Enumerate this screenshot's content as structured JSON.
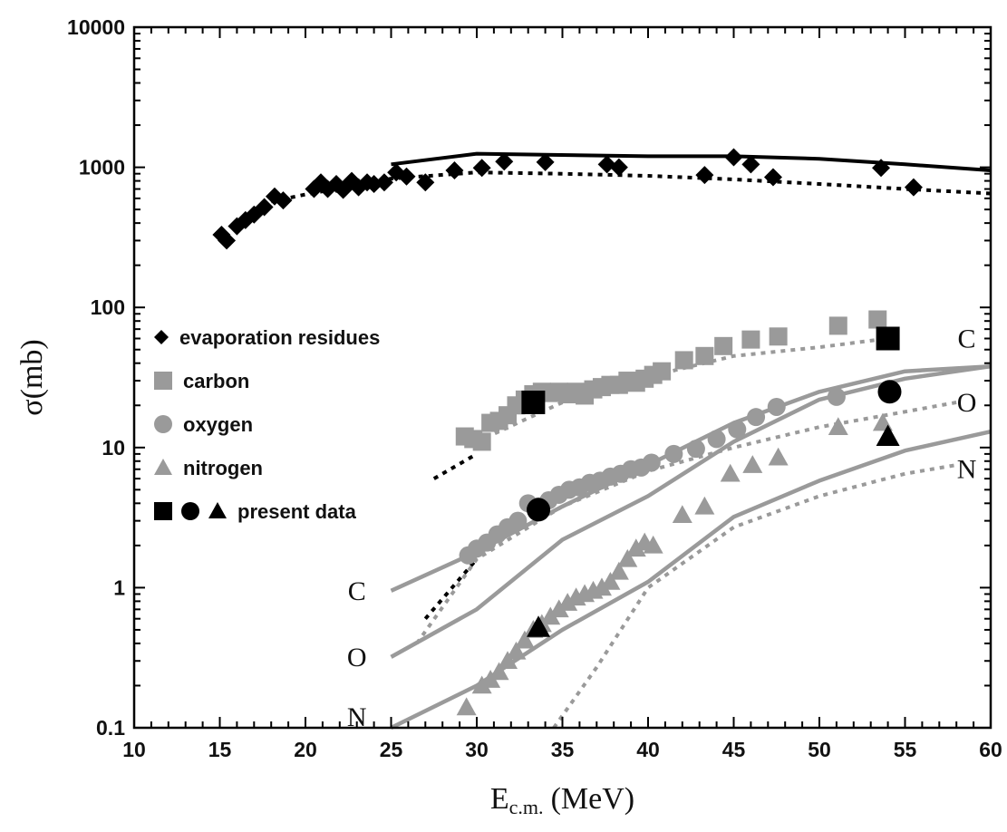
{
  "chart_data": {
    "type": "scatter",
    "title": "",
    "xlabel": "E",
    "xlabel_subscript": "c.m.",
    "xlabel_unit": "(MeV)",
    "ylabel": "σ(mb)",
    "xlim": [
      10,
      60
    ],
    "ylim": [
      0.1,
      10000
    ],
    "yscale": "log",
    "x_ticks": [
      10,
      15,
      20,
      25,
      30,
      35,
      40,
      45,
      50,
      55,
      60
    ],
    "y_ticks": [
      {
        "value": 0.1,
        "label": "0.1"
      },
      {
        "value": 1,
        "label": "1"
      },
      {
        "value": 10,
        "label": "10"
      },
      {
        "value": 100,
        "label": "100"
      },
      {
        "value": 1000,
        "label": "1000"
      },
      {
        "value": 10000,
        "label": "10000"
      }
    ],
    "legend_position": "center-left",
    "grid": false,
    "colors": {
      "black": "#000000",
      "gray": "#9a9a9a"
    },
    "legend": [
      {
        "label": "evaporation residues",
        "markers": [
          "diamond"
        ],
        "color": "#000000"
      },
      {
        "label": "carbon",
        "markers": [
          "square"
        ],
        "color": "#9a9a9a"
      },
      {
        "label": "oxygen",
        "markers": [
          "circle"
        ],
        "color": "#9a9a9a"
      },
      {
        "label": "nitrogen",
        "markers": [
          "triangle"
        ],
        "color": "#9a9a9a"
      },
      {
        "label": "present data",
        "markers": [
          "square",
          "circle",
          "triangle"
        ],
        "color": "#000000"
      }
    ],
    "series": [
      {
        "name": "evaporation residues",
        "marker": "diamond",
        "color": "#000000",
        "x": [
          15.1,
          15.4,
          16.0,
          16.5,
          17.0,
          17.6,
          18.2,
          18.7,
          20.5,
          20.9,
          21.3,
          21.8,
          22.2,
          22.7,
          23.1,
          23.6,
          24.0,
          24.6,
          25.3,
          25.9,
          27.0,
          28.7,
          30.3,
          31.6,
          34.0,
          37.6,
          38.3,
          43.3,
          45.0,
          46.0,
          47.3,
          53.6,
          55.5
        ],
        "y": [
          330,
          300,
          380,
          420,
          460,
          520,
          620,
          580,
          700,
          780,
          700,
          760,
          690,
          800,
          720,
          780,
          760,
          780,
          920,
          860,
          780,
          950,
          990,
          1100,
          1090,
          1050,
          1000,
          880,
          1180,
          1050,
          850,
          990,
          720
        ]
      },
      {
        "name": "carbon",
        "marker": "square",
        "color": "#9a9a9a",
        "x": [
          29.3,
          29.8,
          30.3,
          30.8,
          31.3,
          31.8,
          32.3,
          32.8,
          33.3,
          33.8,
          34.3,
          34.8,
          35.3,
          35.8,
          36.3,
          36.8,
          37.3,
          37.8,
          38.3,
          38.8,
          39.3,
          39.8,
          40.3,
          40.8,
          42.1,
          43.3,
          44.4,
          46.0,
          47.6,
          51.1,
          53.4
        ],
        "y": [
          12,
          11.5,
          11,
          15,
          15.5,
          17,
          20,
          22,
          24,
          25,
          24.5,
          25,
          24,
          25,
          23.5,
          26,
          27,
          28,
          28,
          30,
          29,
          31,
          33,
          35,
          42,
          45,
          53,
          59,
          62,
          74,
          82
        ]
      },
      {
        "name": "oxygen",
        "marker": "circle",
        "color": "#9a9a9a",
        "x": [
          29.5,
          30.0,
          30.6,
          31.2,
          31.8,
          32.4,
          33.0,
          33.6,
          34.2,
          34.8,
          35.4,
          36.0,
          36.6,
          37.2,
          37.8,
          38.4,
          39.0,
          39.6,
          40.2,
          41.5,
          42.8,
          44.0,
          45.2,
          46.3,
          47.5,
          51.0
        ],
        "y": [
          1.7,
          1.9,
          2.1,
          2.4,
          2.7,
          3.0,
          4.0,
          3.8,
          4.2,
          4.6,
          5.0,
          5.2,
          5.6,
          5.8,
          6.2,
          6.5,
          7.0,
          7.2,
          7.8,
          9.0,
          9.8,
          11.5,
          13.5,
          16.5,
          19.5,
          23
        ]
      },
      {
        "name": "nitrogen",
        "marker": "triangle",
        "color": "#9a9a9a",
        "x": [
          29.4,
          30.3,
          30.8,
          31.3,
          31.8,
          32.3,
          32.8,
          33.3,
          33.8,
          34.3,
          34.8,
          35.3,
          35.8,
          36.3,
          36.8,
          37.3,
          37.8,
          38.3,
          38.8,
          39.3,
          39.8,
          40.3,
          42.0,
          43.3,
          44.8,
          46.1,
          47.6,
          51.1,
          53.7
        ],
        "y": [
          0.14,
          0.2,
          0.22,
          0.25,
          0.3,
          0.35,
          0.42,
          0.5,
          0.55,
          0.62,
          0.7,
          0.78,
          0.85,
          0.9,
          0.95,
          1.0,
          1.1,
          1.3,
          1.6,
          1.9,
          2.1,
          2.0,
          3.3,
          3.8,
          6.5,
          7.5,
          8.5,
          14,
          15
        ]
      },
      {
        "name": "present data",
        "marker": "mixed",
        "color": "#000000",
        "points": [
          {
            "x": 33.3,
            "y": 21,
            "marker": "square"
          },
          {
            "x": 54.0,
            "y": 60,
            "marker": "square"
          },
          {
            "x": 33.6,
            "y": 3.6,
            "marker": "circle"
          },
          {
            "x": 54.1,
            "y": 25,
            "marker": "circle"
          },
          {
            "x": 33.6,
            "y": 0.52,
            "marker": "triangle"
          },
          {
            "x": 54.0,
            "y": 12,
            "marker": "triangle"
          }
        ]
      }
    ],
    "curves": [
      {
        "id": "er-solid",
        "style": "solid",
        "color": "#000000",
        "x": [
          25,
          30,
          40,
          45,
          50,
          55,
          60
        ],
        "y": [
          1050,
          1250,
          1200,
          1200,
          1150,
          1050,
          950
        ]
      },
      {
        "id": "er-dotted",
        "style": "dotted",
        "color": "#000000",
        "x": [
          18,
          20,
          25,
          30,
          35,
          40,
          45,
          50,
          55,
          60
        ],
        "y": [
          570,
          640,
          830,
          920,
          900,
          870,
          820,
          760,
          700,
          650
        ]
      },
      {
        "id": "c-dotted-black",
        "style": "dotted",
        "color": "#000000",
        "x": [
          27.5,
          30
        ],
        "y": [
          6,
          9
        ]
      },
      {
        "id": "c-dotted-gray",
        "style": "dotted",
        "color": "#9a9a9a",
        "x": [
          30,
          35,
          40,
          45,
          50,
          54
        ],
        "y": [
          11,
          21,
          32,
          45,
          52,
          60
        ]
      },
      {
        "id": "c-solid",
        "style": "solid",
        "color": "#9a9a9a",
        "x": [
          25,
          30,
          35,
          40,
          45,
          50,
          55,
          60
        ],
        "y": [
          0.95,
          1.8,
          3.8,
          7.5,
          15,
          25,
          35,
          38
        ]
      },
      {
        "id": "o-dotted-black",
        "style": "dotted",
        "color": "#000000",
        "x": [
          27,
          30
        ],
        "y": [
          0.6,
          1.6
        ]
      },
      {
        "id": "o-dotted-gray",
        "style": "dotted",
        "color": "#9a9a9a",
        "x": [
          26.5,
          30,
          35,
          40,
          45,
          50,
          55,
          58
        ],
        "y": [
          0.4,
          1.6,
          3.8,
          6.8,
          10,
          14,
          18,
          21
        ]
      },
      {
        "id": "o-solid",
        "style": "solid",
        "color": "#9a9a9a",
        "x": [
          25,
          30,
          35,
          40,
          45,
          50,
          55,
          60
        ],
        "y": [
          0.32,
          0.7,
          2.2,
          4.5,
          11,
          22,
          31,
          38
        ]
      },
      {
        "id": "n-solid",
        "style": "solid",
        "color": "#9a9a9a",
        "x": [
          25,
          30,
          35,
          40,
          45,
          50,
          55,
          60
        ],
        "y": [
          0.1,
          0.2,
          0.5,
          1.1,
          3.2,
          5.8,
          9.5,
          13
        ]
      },
      {
        "id": "n-dotted-gray",
        "style": "dotted",
        "color": "#9a9a9a",
        "x": [
          34.5,
          37,
          40,
          45,
          50,
          55,
          58
        ],
        "y": [
          0.1,
          0.27,
          1.0,
          2.7,
          4.5,
          6.5,
          7.5
        ]
      }
    ],
    "curve_labels": [
      {
        "text": "C",
        "x": 58.6,
        "y": 60
      },
      {
        "text": "O",
        "x": 58.6,
        "y": 21
      },
      {
        "text": "N",
        "x": 58.6,
        "y": 7
      },
      {
        "text": "C",
        "x": 23.0,
        "y": 0.95
      },
      {
        "text": "O",
        "x": 23.0,
        "y": 0.32
      },
      {
        "text": "N",
        "x": 23.0,
        "y": 0.12
      }
    ]
  }
}
